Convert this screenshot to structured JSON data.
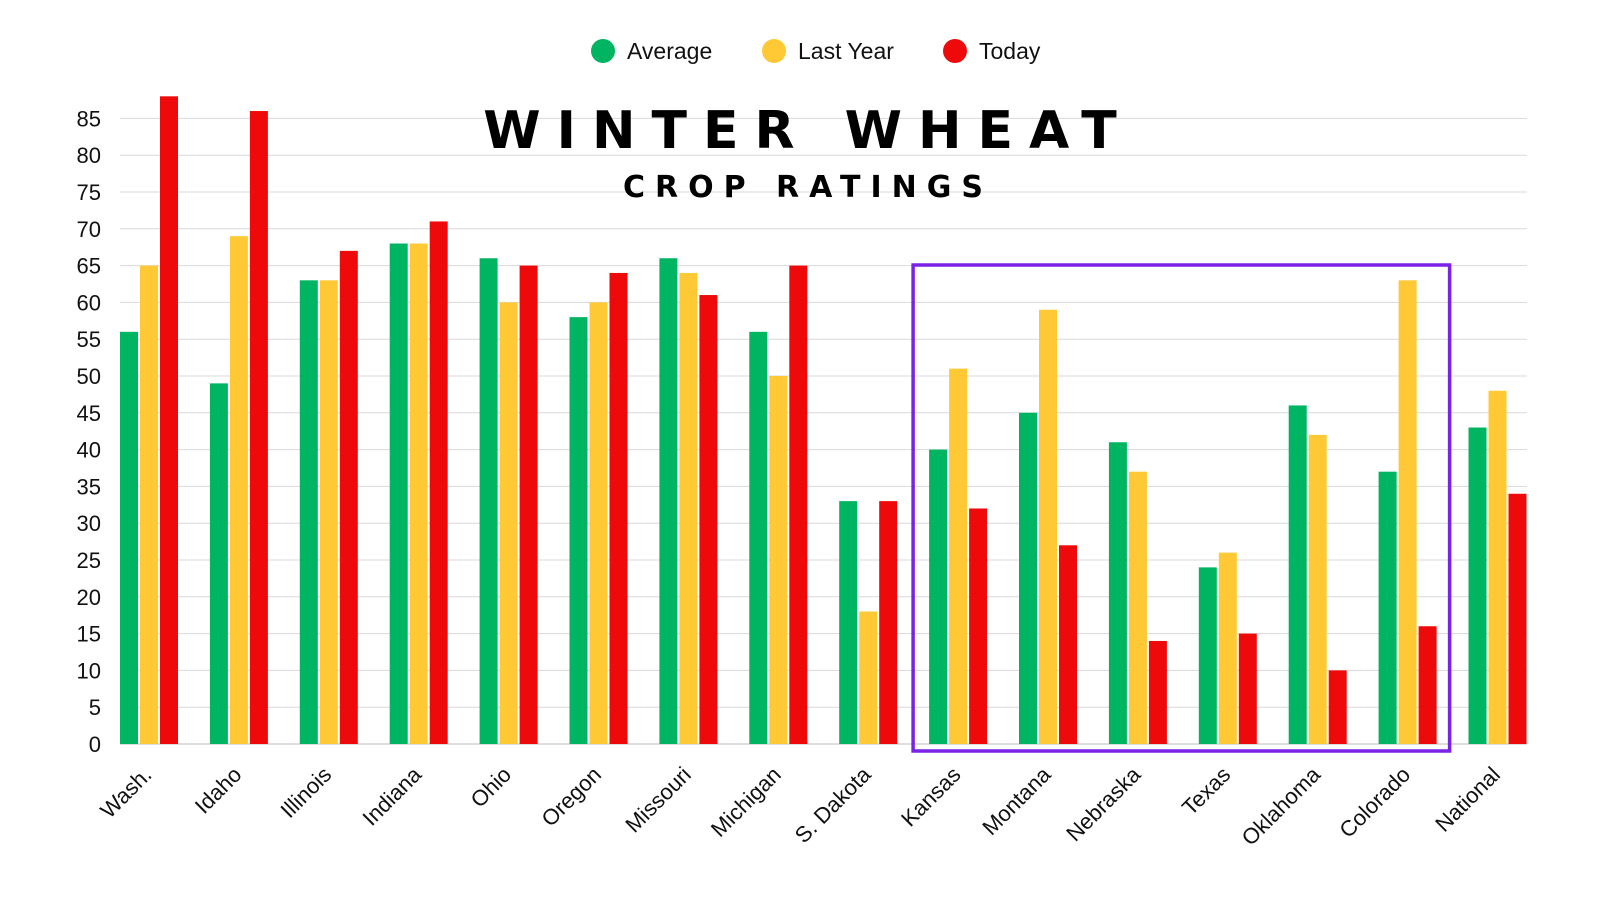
{
  "chart_data": {
    "type": "bar",
    "title": "WINTER WHEAT",
    "subtitle": "CROP RATINGS",
    "categories": [
      "Wash.",
      "Idaho",
      "Illinois",
      "Indiana",
      "Ohio",
      "Oregon",
      "Missouri",
      "Michigan",
      "S. Dakota",
      "Kansas",
      "Montana",
      "Nebraska",
      "Texas",
      "Oklahoma",
      "Colorado",
      "National"
    ],
    "series": [
      {
        "name": "Average",
        "color": "#00b562",
        "values": [
          56,
          49,
          63,
          68,
          66,
          58,
          66,
          56,
          33,
          40,
          45,
          41,
          24,
          46,
          37,
          43
        ]
      },
      {
        "name": "Last Year",
        "color": "#ffc935",
        "values": [
          65,
          69,
          63,
          68,
          60,
          60,
          64,
          50,
          18,
          51,
          59,
          37,
          26,
          42,
          63,
          48
        ]
      },
      {
        "name": "Today",
        "color": "#ee0a0a",
        "values": [
          88,
          86,
          67,
          71,
          65,
          64,
          61,
          65,
          33,
          32,
          27,
          14,
          15,
          10,
          16,
          34
        ]
      }
    ],
    "yticks": [
      0,
      5,
      10,
      15,
      20,
      25,
      30,
      35,
      40,
      45,
      50,
      55,
      60,
      65,
      70,
      75,
      80,
      85
    ],
    "ylim": [
      0,
      88
    ],
    "grid": true,
    "legend_position": "top-center",
    "highlight": {
      "from": "Kansas",
      "to": "Colorado",
      "color": "#7a22e6"
    }
  }
}
